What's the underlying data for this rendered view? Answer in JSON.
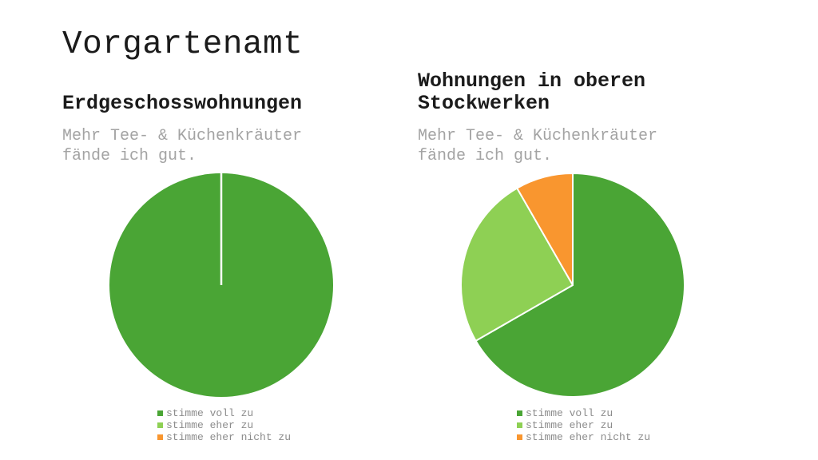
{
  "title": "Vorgartenamt",
  "panels": [
    {
      "heading": "Erdgeschosswohnungen",
      "subtitle": "Mehr Tee- & Küchenkräuter fände ich gut."
    },
    {
      "heading": "Wohnungen in oberen Stockwerken",
      "subtitle": "Mehr Tee- & Küchenkräuter fände ich gut."
    }
  ],
  "chart_data": [
    {
      "type": "pie",
      "title": "Erdgeschosswohnungen",
      "question": "Mehr Tee- & Küchenkräuter fände ich gut.",
      "labels": [
        "stimme voll zu",
        "stimme eher zu",
        "stimme eher nicht zu"
      ],
      "values_percent": [
        100,
        0,
        0
      ],
      "colors": [
        "#4aa535",
        "#8ed054",
        "#f9962f"
      ],
      "start_angle_deg": 0,
      "direction": "clockwise",
      "slice_border_color": "#ffffff",
      "legend_position": "bottom"
    },
    {
      "type": "pie",
      "title": "Wohnungen in oberen Stockwerken",
      "question": "Mehr Tee- & Küchenkräuter fände ich gut.",
      "labels": [
        "stimme voll zu",
        "stimme eher zu",
        "stimme eher nicht zu"
      ],
      "values_percent": [
        66.7,
        25,
        8.3
      ],
      "colors": [
        "#4aa535",
        "#8ed054",
        "#f9962f"
      ],
      "start_angle_deg": 0,
      "direction": "clockwise",
      "slice_border_color": "#ffffff",
      "legend_position": "bottom"
    }
  ]
}
